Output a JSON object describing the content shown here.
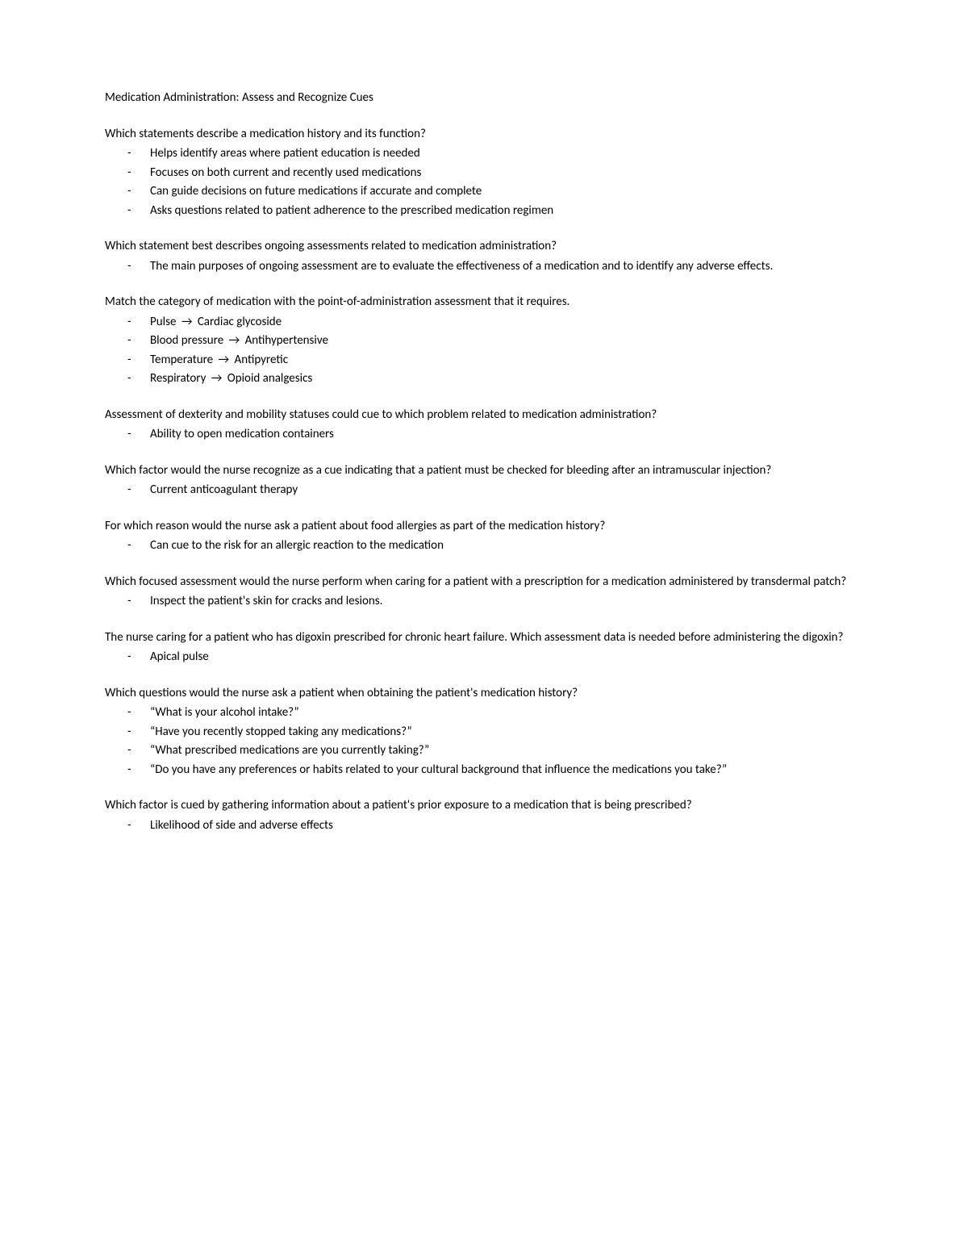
{
  "title": "Medication Administration: Assess and Recognize Cues",
  "arrow": "→",
  "sections": [
    {
      "question": "Which statements describe a medication history and its function?",
      "items": [
        "Helps identify areas where patient education is needed",
        "Focuses on both current and recently used medications",
        "Can guide decisions on future medications if accurate and complete",
        "Asks questions related to patient adherence to the prescribed medication regimen"
      ]
    },
    {
      "question": "Which statement best describes ongoing assessments related to medication administration?",
      "items": [
        "The main purposes of ongoing assessment are to evaluate the effectiveness of a medication and to identify any adverse effects."
      ]
    },
    {
      "question": "Match the category of medication with the point-of-administration assessment that it requires.",
      "matchItems": [
        {
          "left": "Pulse",
          "right": "Cardiac glycoside"
        },
        {
          "left": "Blood pressure",
          "right": "Antihypertensive"
        },
        {
          "left": "Temperature",
          "right": "Antipyretic"
        },
        {
          "left": "Respiratory",
          "right": "Opioid analgesics"
        }
      ]
    },
    {
      "question": "Assessment of dexterity and mobility statuses could cue to which problem related to medication administration?",
      "items": [
        "Ability to open medication containers"
      ]
    },
    {
      "question": "Which factor would the nurse recognize as a cue indicating that a patient must be checked for bleeding after an intramuscular injection?",
      "items": [
        "Current anticoagulant therapy"
      ]
    },
    {
      "question": "For which reason would the nurse ask a patient about food allergies as part of the medication history?",
      "items": [
        "Can cue to the risk for an allergic reaction to the medication"
      ]
    },
    {
      "question": "Which focused assessment would the nurse perform when caring for a patient with a prescription for a medication administered by transdermal patch?",
      "items": [
        "Inspect the patient's skin for cracks and lesions."
      ]
    },
    {
      "question": "The nurse caring for a patient who has digoxin prescribed for chronic heart failure. Which assessment data is needed before administering the digoxin?",
      "items": [
        "Apical pulse"
      ]
    },
    {
      "question": "Which questions would the nurse ask a patient when obtaining the patient's medication history?",
      "items": [
        "“What is your alcohol intake?”",
        "“Have you recently stopped taking any medications?”",
        "“What prescribed medications are you currently taking?”",
        "“Do you have any preferences or habits related to your cultural background that influence the medications you take?”"
      ]
    },
    {
      "question": "Which factor is cued by gathering information about a patient's prior exposure to a medication that is being prescribed?",
      "items": [
        "Likelihood of side and adverse effects"
      ]
    }
  ]
}
